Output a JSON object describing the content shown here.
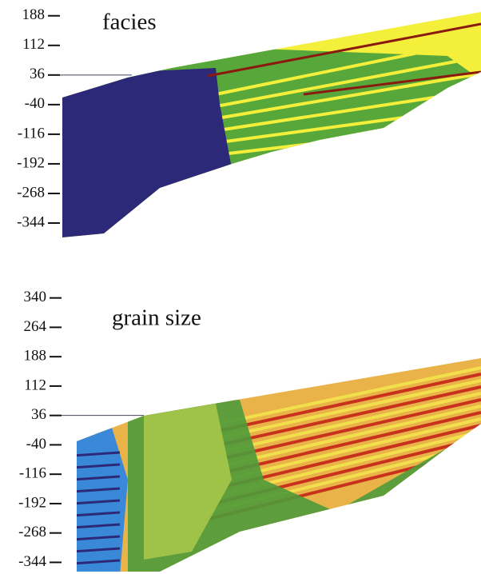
{
  "chart_data": [
    {
      "type": "section",
      "title": "facies",
      "ylim": [
        -385,
        208
      ],
      "yticks": [
        188,
        112,
        36,
        -40,
        -116,
        -192,
        -268,
        -344
      ]
    },
    {
      "type": "section",
      "title": "grain size",
      "ylim": [
        -370,
        360
      ],
      "yticks": [
        340,
        264,
        188,
        112,
        36,
        -40,
        -116,
        -192,
        -268,
        -344
      ]
    }
  ]
}
